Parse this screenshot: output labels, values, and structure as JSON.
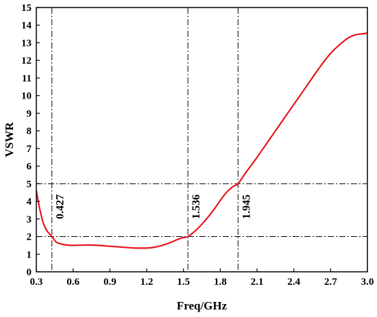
{
  "chart_data": {
    "type": "line",
    "title": "",
    "xlabel": "Freq/GHz",
    "ylabel": "VSWR",
    "xlim": [
      0.3,
      3.0
    ],
    "ylim": [
      0,
      15
    ],
    "x_ticks": [
      "0.3",
      "0.6",
      "0.9",
      "1.2",
      "1.5",
      "1.8",
      "2.1",
      "2.4",
      "2.7",
      "3.0"
    ],
    "y_ticks": [
      "0",
      "1",
      "2",
      "3",
      "4",
      "5",
      "6",
      "7",
      "8",
      "9",
      "10",
      "11",
      "12",
      "13",
      "14",
      "15"
    ],
    "grid": false,
    "legend": "none",
    "series": [
      {
        "color": "#e8141c",
        "x": [
          0.3,
          0.33,
          0.36,
          0.39,
          0.427,
          0.46,
          0.5,
          0.55,
          0.6,
          0.7,
          0.8,
          0.9,
          1.0,
          1.1,
          1.2,
          1.25,
          1.3,
          1.35,
          1.4,
          1.45,
          1.5,
          1.536,
          1.6,
          1.65,
          1.7,
          1.75,
          1.8,
          1.85,
          1.9,
          1.945,
          2.0,
          2.1,
          2.2,
          2.3,
          2.4,
          2.5,
          2.6,
          2.7,
          2.8,
          2.85,
          2.9,
          2.95,
          3.0
        ],
        "y": [
          4.6,
          3.5,
          2.7,
          2.3,
          2.0,
          1.7,
          1.58,
          1.52,
          1.5,
          1.52,
          1.5,
          1.45,
          1.4,
          1.35,
          1.35,
          1.38,
          1.45,
          1.55,
          1.68,
          1.83,
          1.95,
          2.0,
          2.35,
          2.7,
          3.1,
          3.55,
          4.05,
          4.5,
          4.82,
          5.0,
          5.55,
          6.5,
          7.5,
          8.5,
          9.5,
          10.5,
          11.5,
          12.4,
          13.05,
          13.3,
          13.45,
          13.5,
          13.55
        ]
      }
    ],
    "reference_lines": {
      "horizontal": [
        2,
        5
      ],
      "vertical": [
        0.427,
        1.536,
        1.945
      ]
    },
    "annotations": [
      "0.427",
      "1.536",
      "1.945"
    ]
  }
}
